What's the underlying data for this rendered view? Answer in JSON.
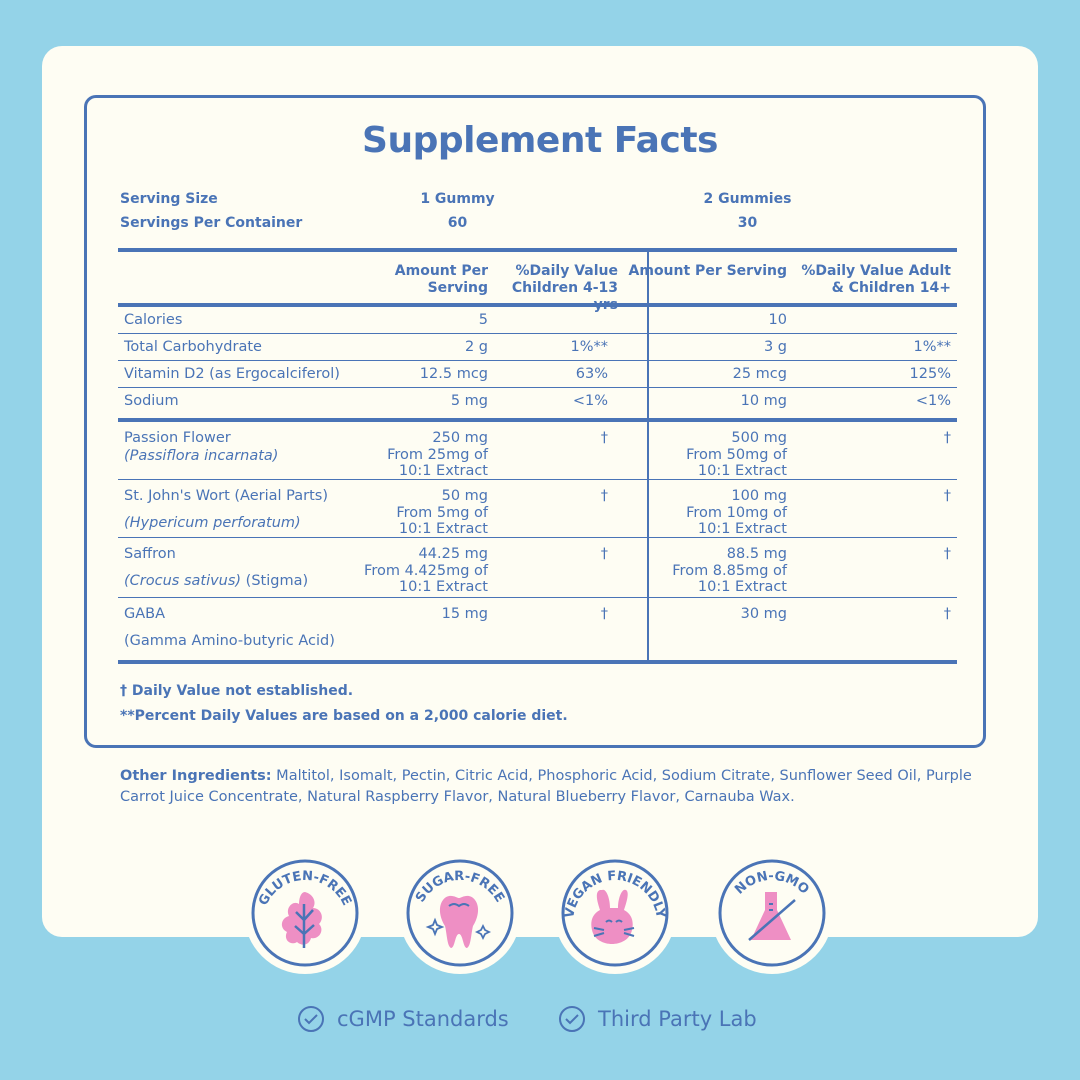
{
  "title": "Supplement Facts",
  "serving": {
    "size_label": "Serving Size",
    "per_container_label": "Servings Per Container",
    "col1_size": "1 Gummy",
    "col1_count": "60",
    "col2_size": "2 Gummies",
    "col2_count": "30"
  },
  "headers": {
    "amount1": "Amount Per Serving",
    "dv1": "%Daily Value Children 4-13 yrs",
    "amount2": "Amount Per Serving",
    "dv2": "%Daily Value Adult & Children 14+"
  },
  "nutrients": [
    {
      "name": "Calories",
      "a1": "5",
      "d1": "",
      "a2": "10",
      "d2": ""
    },
    {
      "name": "Total Carbohydrate",
      "a1": "2 g",
      "d1": "1%**",
      "a2": "3 g",
      "d2": "1%**"
    },
    {
      "name": "Vitamin D2 (as Ergocalciferol)",
      "a1": "12.5 mcg",
      "d1": "63%",
      "a2": "25 mcg",
      "d2": "125%"
    },
    {
      "name": "Sodium",
      "a1": "5 mg",
      "d1": "<1%",
      "a2": "10 mg",
      "d2": "<1%"
    }
  ],
  "botanicals": [
    {
      "name": "Passion Flower",
      "latin": "(Passiflora incarnata)",
      "a1": "250 mg",
      "a1b": "From 25mg of",
      "a1c": "10:1 Extract",
      "d1": "†",
      "a2": "500 mg",
      "a2b": "From 50mg of",
      "a2c": "10:1 Extract",
      "d2": "†"
    },
    {
      "name": "St. John's Wort (Aerial Parts)",
      "latin": "(Hypericum perforatum)",
      "a1": "50 mg",
      "a1b": "From 5mg of",
      "a1c": "10:1 Extract",
      "d1": "†",
      "a2": "100 mg",
      "a2b": "From 10mg of",
      "a2c": "10:1 Extract",
      "d2": "†"
    },
    {
      "name": "Saffron",
      "latin": "(Crocus sativus)",
      "latin_suffix": " (Stigma)",
      "a1": "44.25 mg",
      "a1b": "From 4.425mg of",
      "a1c": "10:1 Extract",
      "d1": "†",
      "a2": "88.5 mg",
      "a2b": "From 8.85mg of",
      "a2c": "10:1 Extract",
      "d2": "†"
    },
    {
      "name": "GABA",
      "latin_plain": "(Gamma Amino-butyric Acid)",
      "a1": "15 mg",
      "d1": "†",
      "a2": "30 mg",
      "d2": "†"
    }
  ],
  "footnotes": [
    "† Daily Value not established.",
    "**Percent Daily Values are based on a 2,000 calorie diet."
  ],
  "ingredients": {
    "label": "Other Ingredients:",
    "text": " Maltitol, Isomalt, Pectin, Citric Acid, Phosphoric Acid, Sodium Citrate, Sunflower Seed Oil, Purple Carrot Juice Concentrate, Natural Raspberry Flavor, Natural Blueberry Flavor, Carnauba Wax."
  },
  "badges": [
    {
      "label": "GLUTEN-FREE",
      "icon": "leaf-icon"
    },
    {
      "label": "SUGAR-FREE",
      "icon": "tooth-icon"
    },
    {
      "label": "VEGAN FRIENDLY",
      "icon": "bunny-icon"
    },
    {
      "label": "NON-GMO",
      "icon": "flask-icon"
    }
  ],
  "certifications": [
    "cGMP Standards",
    "Third Party Lab"
  ],
  "colors": {
    "background": "#94d3e8",
    "card": "#fefdf3",
    "text": "#4a74b6",
    "icon_pink": "#ee8fc4"
  }
}
